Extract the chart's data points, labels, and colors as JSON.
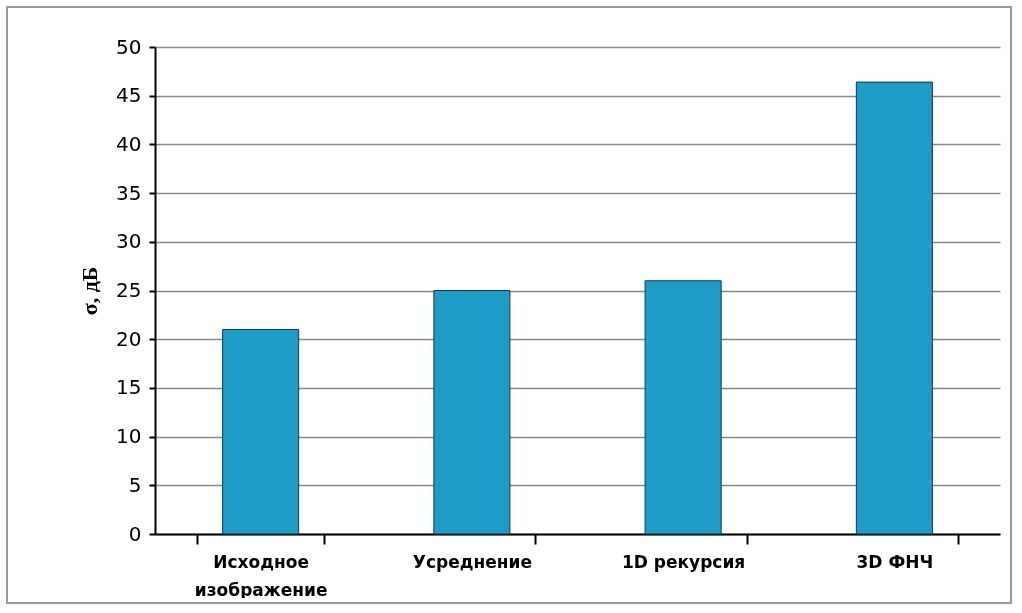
{
  "chart_data": {
    "type": "bar",
    "ylabel": "σ, дБ",
    "categories": [
      "Исходное изображение",
      "Усреднение",
      "1D рекурсия",
      "3D ФНЧ"
    ],
    "values": [
      21,
      25,
      26,
      46.4
    ],
    "color": "#1e9cc8",
    "ylim": [
      0,
      50
    ],
    "yticks": [
      0,
      5,
      10,
      15,
      20,
      25,
      30,
      35,
      40,
      45,
      50
    ],
    "grid": "y"
  }
}
